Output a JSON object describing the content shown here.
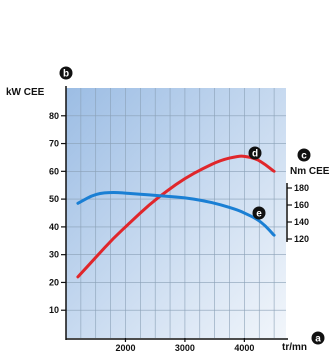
{
  "chart_data": {
    "type": "line",
    "x": [
      1200,
      1500,
      1800,
      2100,
      2400,
      2700,
      3000,
      3300,
      3600,
      3900,
      4000,
      4200,
      4350,
      4500
    ],
    "series": [
      {
        "values": [
          22,
          29,
          36,
          42,
          48,
          53,
          57.5,
          61,
          64,
          65.5,
          65.5,
          64.5,
          62.5,
          60
        ],
        "color": "#e0262b",
        "marker": "d"
      },
      {
        "values": [
          48.5,
          52,
          52.5,
          52,
          51.5,
          51,
          50.5,
          49.5,
          48,
          46,
          45,
          43,
          40.5,
          37
        ],
        "color": "#1a7fd4",
        "marker": "e"
      }
    ],
    "xlim": [
      1000,
      4700
    ],
    "ylim": [
      0,
      90
    ],
    "x_ticks": [
      "2000",
      "3000",
      "4000"
    ],
    "x_tick_values": [
      2000,
      3000,
      4000
    ],
    "y_ticks": [
      "10",
      "20",
      "30",
      "40",
      "50",
      "60",
      "70",
      "80"
    ],
    "y_tick_values": [
      10,
      20,
      30,
      40,
      50,
      60,
      70,
      80
    ],
    "y2_ticks": [
      "120",
      "140",
      "160",
      "180"
    ],
    "y2_tick_values": [
      120,
      140,
      160,
      180
    ],
    "ylabel": "kW CEE",
    "y2label": "Nm CEE",
    "xlabel": "tr/mn",
    "grid": true,
    "badges": {
      "y_axis": "b",
      "y2_axis": "c",
      "x_axis": "a",
      "series_1": "d",
      "series_2": "e"
    },
    "colors": {
      "background_top_left": "#9cbde4",
      "background_bottom_right": "#f2f6fb",
      "grid": "#8aa0b6",
      "badge": "#111111"
    }
  }
}
